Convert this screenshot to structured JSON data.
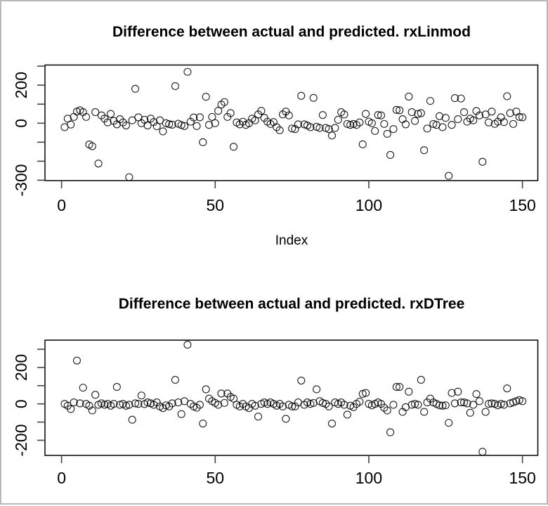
{
  "window": {
    "background": "#ffffff",
    "border_color": "#b9b9b9"
  },
  "marker": {
    "shape": "open-circle",
    "radius": 5,
    "stroke": "#000000"
  },
  "axis": {
    "line_color": "#000000",
    "tick_color": "#444444",
    "label_color": "#000000"
  },
  "chart_data": [
    {
      "type": "scatter",
      "title": "Difference between actual and predicted. rxLinmod",
      "xlabel": "Index",
      "ylabel": "",
      "x_start": 1,
      "xlim": [
        -5.4,
        155
      ],
      "ylim": [
        -302,
        306
      ],
      "x_ticks": [
        0,
        50,
        100,
        150
      ],
      "y_ticks": [
        300,
        200,
        100,
        0,
        -100,
        -200,
        -300
      ],
      "y_tick_labels": {
        "200": "200",
        "0": "0",
        "-300": "-300"
      },
      "grid": false,
      "legend": null,
      "values": [
        -21,
        24,
        -7,
        33,
        61,
        68,
        58,
        33,
        -112,
        -121,
        58,
        -212,
        41,
        24,
        4,
        49,
        12,
        -6,
        21,
        4,
        -12,
        -284,
        15,
        181,
        31,
        0,
        18,
        -12,
        24,
        6,
        -16,
        15,
        -43,
        0,
        -5,
        -8,
        195,
        -3,
        -10,
        -15,
        270,
        8,
        30,
        -15,
        31,
        -100,
        139,
        -9,
        33,
        0,
        65,
        98,
        111,
        33,
        53,
        -124,
        4,
        -6,
        8,
        -9,
        0,
        24,
        15,
        46,
        65,
        28,
        8,
        -4,
        6,
        -21,
        -37,
        46,
        61,
        41,
        -28,
        -31,
        -6,
        144,
        -6,
        -12,
        -21,
        133,
        -19,
        -25,
        43,
        -25,
        -31,
        -65,
        -25,
        18,
        58,
        46,
        -4,
        -9,
        -4,
        -9,
        4,
        -111,
        49,
        8,
        0,
        -41,
        43,
        41,
        -4,
        -56,
        -167,
        -31,
        70,
        68,
        21,
        -6,
        140,
        58,
        12,
        49,
        53,
        -142,
        -28,
        117,
        -4,
        -9,
        37,
        -21,
        28,
        -277,
        -9,
        132,
        21,
        130,
        58,
        8,
        24,
        15,
        64,
        41,
        -203,
        46,
        4,
        61,
        -4,
        8,
        31,
        6,
        142,
        53,
        -4,
        61,
        33,
        31
      ]
    },
    {
      "type": "scatter",
      "title": "Difference between actual and predicted. rxDTree",
      "xlabel": "",
      "ylabel": "",
      "x_start": 1,
      "xlim": [
        -5.4,
        155
      ],
      "ylim": [
        -283,
        350
      ],
      "x_ticks": [
        0,
        50,
        100,
        150
      ],
      "y_ticks": [
        300,
        200,
        100,
        0,
        -100,
        -200
      ],
      "y_tick_labels": {
        "200": "200",
        "0": "0",
        "-200": "-200"
      },
      "grid": false,
      "legend": null,
      "values": [
        0,
        -10,
        -28,
        8,
        238,
        3,
        89,
        0,
        -10,
        -36,
        50,
        -5,
        3,
        -5,
        0,
        -10,
        0,
        93,
        -5,
        0,
        -10,
        -5,
        -87,
        3,
        0,
        46,
        -1,
        8,
        3,
        -5,
        8,
        -14,
        -23,
        -8,
        -14,
        3,
        132,
        8,
        -56,
        15,
        325,
        0,
        -14,
        -21,
        -5,
        -108,
        80,
        29,
        15,
        5,
        -5,
        57,
        5,
        57,
        38,
        29,
        -5,
        -14,
        0,
        -14,
        -23,
        0,
        -10,
        -70,
        0,
        8,
        0,
        8,
        0,
        -10,
        0,
        -14,
        -82,
        -5,
        -14,
        -14,
        8,
        128,
        -5,
        8,
        0,
        5,
        80,
        15,
        5,
        0,
        -14,
        -108,
        8,
        0,
        8,
        -5,
        -59,
        -10,
        -18,
        0,
        12,
        55,
        60,
        0,
        -8,
        0,
        8,
        0,
        -21,
        -36,
        -156,
        -5,
        93,
        93,
        -44,
        -18,
        67,
        -5,
        0,
        -5,
        132,
        -44,
        8,
        29,
        8,
        0,
        -8,
        -10,
        -8,
        -104,
        60,
        3,
        67,
        8,
        8,
        3,
        -49,
        -5,
        54,
        15,
        -263,
        -44,
        0,
        3,
        0,
        -8,
        0,
        -5,
        85,
        3,
        8,
        15,
        21,
        15
      ]
    }
  ]
}
